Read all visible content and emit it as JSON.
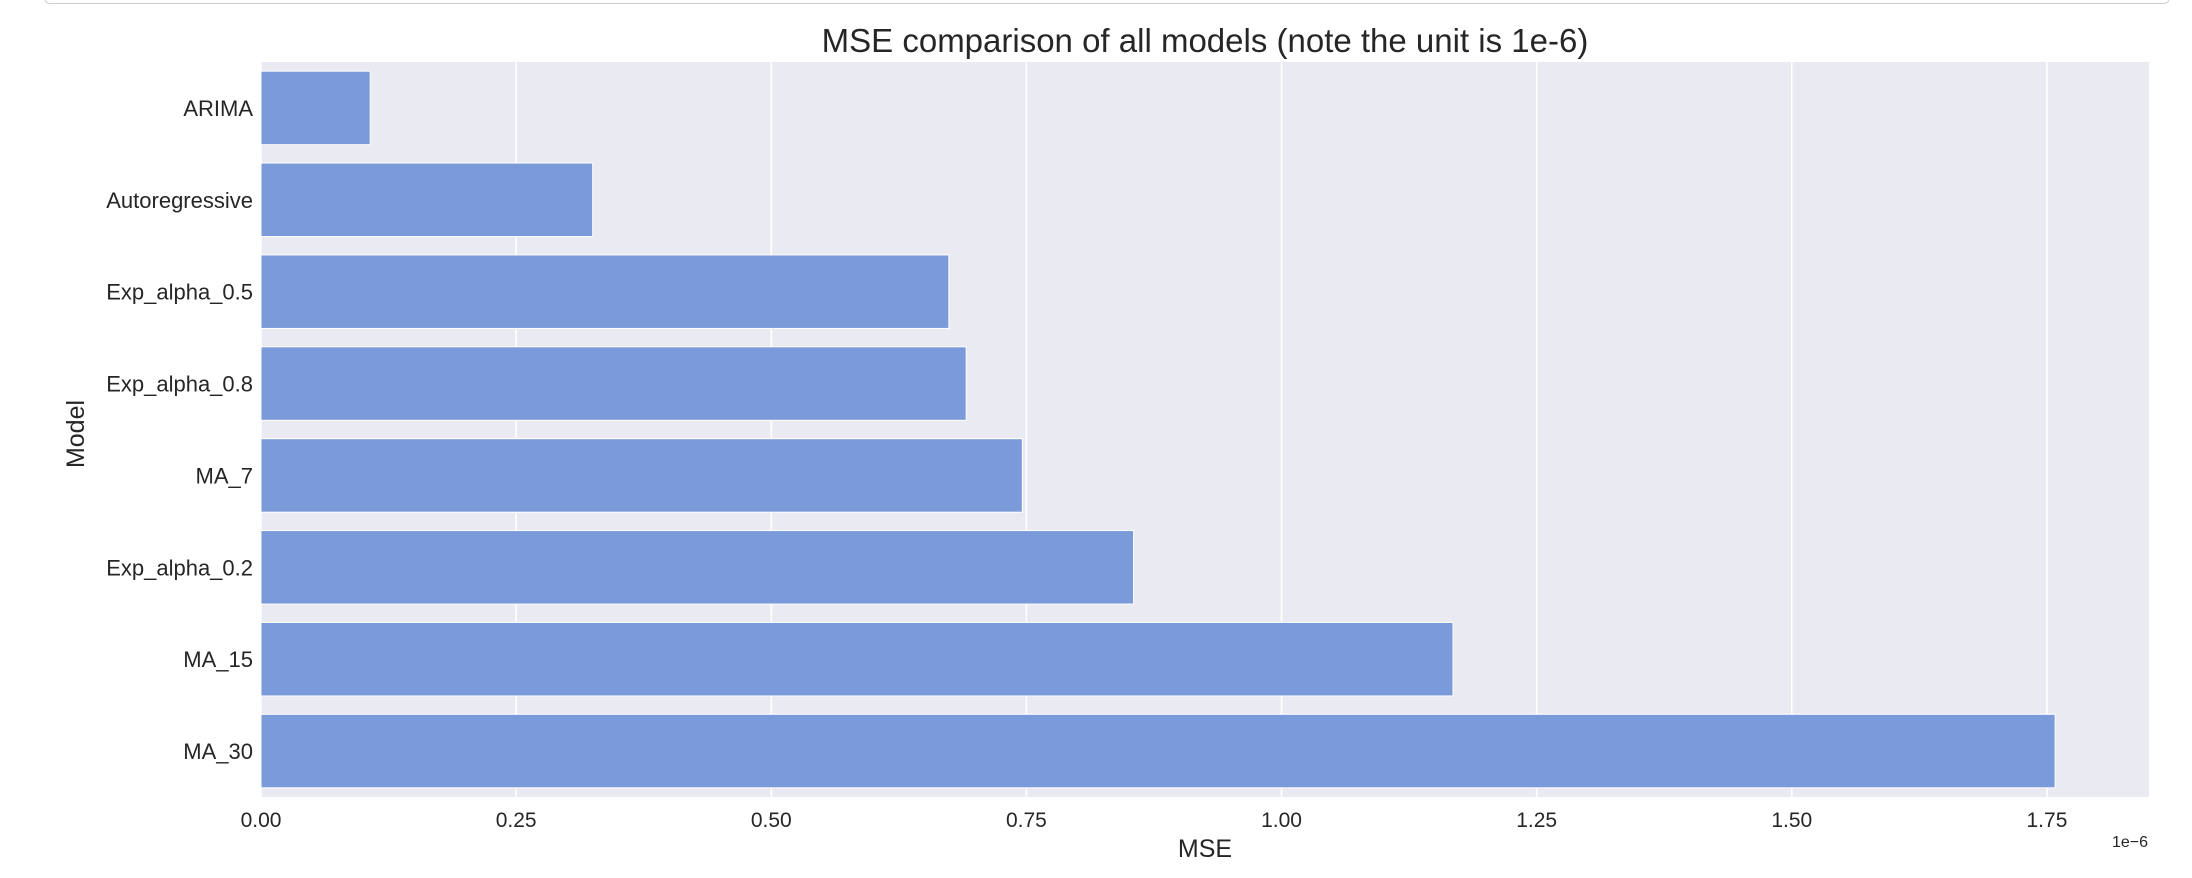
{
  "chart_data": {
    "type": "bar",
    "orientation": "horizontal",
    "title": "MSE comparison of all models (note the unit is 1e-6)",
    "xlabel": "MSE",
    "ylabel": "Model",
    "offset_label": "1e−6",
    "categories": [
      "ARIMA",
      "Autoregressive",
      "Exp_alpha_0.5",
      "Exp_alpha_0.8",
      "MA_7",
      "Exp_alpha_0.2",
      "MA_15",
      "MA_30"
    ],
    "values": [
      0.107,
      0.325,
      0.674,
      0.691,
      0.746,
      0.855,
      1.168,
      1.758
    ],
    "xlim": [
      0,
      1.85
    ],
    "xticks": [
      0.0,
      0.25,
      0.5,
      0.75,
      1.0,
      1.25,
      1.5,
      1.75
    ],
    "xtick_labels": [
      "0.00",
      "0.25",
      "0.50",
      "0.75",
      "1.00",
      "1.25",
      "1.50",
      "1.75"
    ],
    "grid": true,
    "style": "seaborn-darkgrid",
    "colors": {
      "bar": "#7b9ad9",
      "plot_bg": "#eaeaf2",
      "grid": "#ffffff",
      "text": "#262626"
    }
  }
}
